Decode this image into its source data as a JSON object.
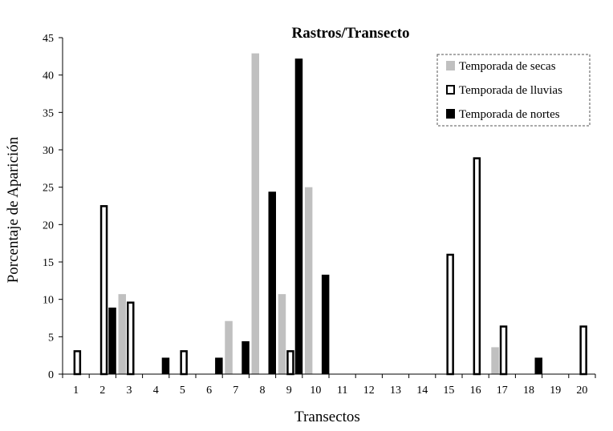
{
  "chart_data": {
    "type": "bar",
    "title": "Rastros/Transecto",
    "xlabel": "Transectos",
    "ylabel": "Porcentaje de Aparición",
    "ylim": [
      0,
      45
    ],
    "yticks": [
      0,
      5,
      10,
      15,
      20,
      25,
      30,
      35,
      40,
      45
    ],
    "categories": [
      "1",
      "2",
      "3",
      "4",
      "5",
      "6",
      "7",
      "8",
      "9",
      "10",
      "11",
      "12",
      "13",
      "14",
      "15",
      "16",
      "17",
      "18",
      "19",
      "20"
    ],
    "series": [
      {
        "name": "Temporada de secas",
        "color": "#c0c0c0",
        "style": "filled",
        "values": [
          0,
          0,
          10.7,
          0,
          0,
          0,
          7.1,
          42.9,
          10.7,
          25,
          0,
          0,
          0,
          0,
          0,
          0,
          3.6,
          0,
          0,
          0
        ]
      },
      {
        "name": "Temporada de lluvias",
        "color": "#000000",
        "style": "outline",
        "values": [
          3.2,
          22.6,
          9.7,
          0,
          3.2,
          0,
          0,
          0,
          3.2,
          0,
          0,
          0,
          0,
          0,
          16.1,
          29,
          6.5,
          0,
          0,
          6.5
        ]
      },
      {
        "name": "Temporada de nortes",
        "color": "#000000",
        "style": "filled",
        "values": [
          0,
          8.9,
          0,
          2.2,
          0,
          2.2,
          4.4,
          24.4,
          42.2,
          13.3,
          0,
          0,
          0,
          0,
          0,
          0,
          0,
          2.2,
          0,
          0
        ]
      }
    ],
    "legend_position": "top-right",
    "grid": false
  }
}
